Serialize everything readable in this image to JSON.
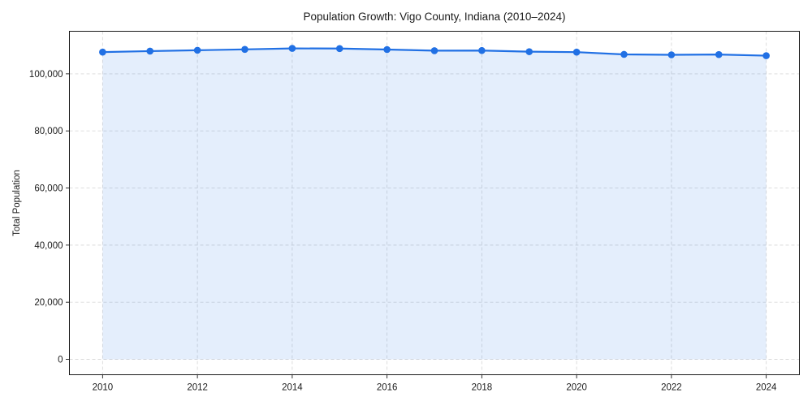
{
  "chart_data": {
    "type": "line",
    "title": "Population Growth: Vigo County, Indiana (2010–2024)",
    "xlabel": "",
    "ylabel": "Total Population",
    "x": [
      2010,
      2011,
      2012,
      2013,
      2014,
      2015,
      2016,
      2017,
      2018,
      2019,
      2020,
      2021,
      2022,
      2023,
      2024
    ],
    "series": [
      {
        "name": "Total Population",
        "values": [
          107600,
          107950,
          108250,
          108550,
          108900,
          108850,
          108500,
          108100,
          108150,
          107750,
          107600,
          106800,
          106650,
          106750,
          106350
        ]
      }
    ],
    "area_fill_baseline": 0,
    "xticks": {
      "values": [
        2010,
        2012,
        2014,
        2016,
        2018,
        2020,
        2022,
        2024
      ],
      "labels": [
        "2010",
        "2012",
        "2014",
        "2016",
        "2018",
        "2020",
        "2022",
        "2024"
      ]
    },
    "yticks": {
      "values": [
        0,
        20000,
        40000,
        60000,
        80000,
        100000
      ],
      "labels": [
        "0",
        "20,000",
        "40,000",
        "60,000",
        "80,000",
        "100,000"
      ]
    },
    "xlim": [
      2009.3,
      2024.7
    ],
    "ylim": [
      -5400,
      114900
    ],
    "grid": true,
    "grid_style": "dashed",
    "legend_position": "none",
    "colors": {
      "line": "#2170e4",
      "marker": "#2170e4",
      "area_fill": "rgba(33, 112, 228, 0.12)",
      "grid": "#d9d9d9",
      "spine": "#1a1a1a",
      "text": "#1a1a1a",
      "background": "#ffffff"
    }
  }
}
